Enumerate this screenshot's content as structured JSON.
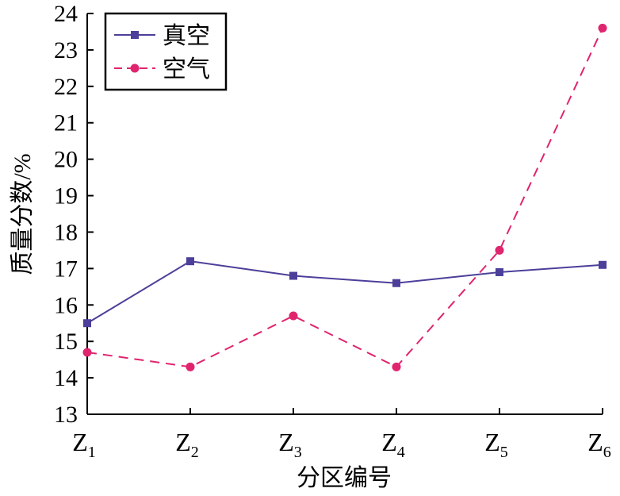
{
  "chart_data": {
    "type": "line",
    "categories": [
      {
        "base": "Z",
        "sub": "1"
      },
      {
        "base": "Z",
        "sub": "2"
      },
      {
        "base": "Z",
        "sub": "3"
      },
      {
        "base": "Z",
        "sub": "4"
      },
      {
        "base": "Z",
        "sub": "5"
      },
      {
        "base": "Z",
        "sub": "6"
      }
    ],
    "series": [
      {
        "name": "真空",
        "values": [
          15.5,
          17.2,
          16.8,
          16.6,
          16.9,
          17.1
        ],
        "color": "#4b3f9a",
        "marker": "square",
        "line": "solid"
      },
      {
        "name": "空气",
        "values": [
          14.7,
          14.3,
          15.7,
          14.3,
          17.5,
          23.6
        ],
        "color": "#e0246e",
        "marker": "circle",
        "line": "dashed"
      }
    ],
    "xlabel": "分区编号",
    "ylabel": "质量分数/%",
    "ylim": [
      13,
      24
    ],
    "yticks": [
      13,
      14,
      15,
      16,
      17,
      18,
      19,
      20,
      21,
      22,
      23,
      24
    ],
    "grid": false,
    "legend": "top-left"
  }
}
